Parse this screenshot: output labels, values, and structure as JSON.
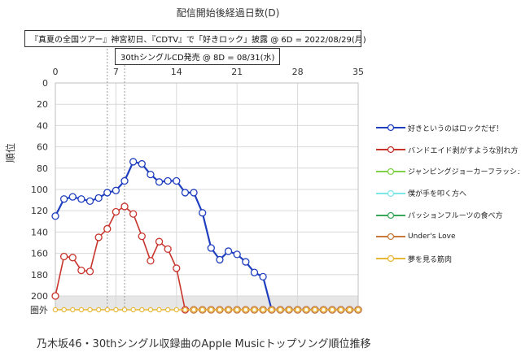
{
  "chart_data": {
    "type": "line",
    "title": "",
    "xlabel": "配信開始後経過日数(D)",
    "ylabel": "順位",
    "caption": "乃木坂46・30thシングル収録曲のApple Musicトップソング順位推移",
    "x_ticks": [
      0,
      7,
      14,
      21,
      28,
      35
    ],
    "y_ticks": [
      "0",
      "20",
      "40",
      "60",
      "80",
      "100",
      "120",
      "140",
      "160",
      "180",
      "200",
      "圏外"
    ],
    "xlim": [
      0,
      35
    ],
    "ylim": [
      0,
      213
    ],
    "y_inverted": true,
    "out_of_chart_label": "圏外",
    "out_of_chart_value": 213,
    "legend_position": "right",
    "annotations": [
      {
        "text": "『真夏の全国ツアー』神宮初日、『CDTV』で「好きロック」披露 @ 6D = 2022/08/29(月)",
        "x": 6
      },
      {
        "text": "30thシングルCD発売 @ 8D = 08/31(水)",
        "x": 8
      }
    ],
    "series": [
      {
        "name": "好きというのはロックだぜ！",
        "color": "#1f3fbf",
        "values": [
          125,
          109,
          107,
          109,
          111,
          108,
          103,
          101,
          92,
          74,
          76,
          86,
          93,
          92,
          92,
          103,
          103,
          122,
          155,
          166,
          158,
          161,
          168,
          178,
          182,
          213,
          213,
          213,
          213,
          213,
          213,
          213,
          213,
          213,
          213,
          213
        ]
      },
      {
        "name": "バンドエイド剥がすような別れ方",
        "color": "#c8342c",
        "values": [
          200,
          163,
          164,
          176,
          177,
          145,
          137,
          121,
          116,
          123,
          144,
          167,
          149,
          156,
          174,
          213,
          213,
          213,
          213,
          213,
          213,
          213,
          213,
          213,
          213,
          213,
          213,
          213,
          213,
          213,
          213,
          213,
          213,
          213,
          213,
          213
        ]
      },
      {
        "name": "ジャンピングジョーカーフラッシュ",
        "color": "#7fd24a",
        "values": []
      },
      {
        "name": "僕が手を叩く方へ",
        "color": "#7ee8e8",
        "values": []
      },
      {
        "name": "パッションフルーツの食べ方",
        "color": "#3aa85a",
        "values": []
      },
      {
        "name": "Under's Love",
        "color": "#c87a3a",
        "values": [
          null,
          null,
          null,
          null,
          null,
          null,
          null,
          null,
          null,
          null,
          null,
          null,
          null,
          null,
          null,
          null,
          213,
          213,
          213,
          213,
          213,
          213,
          213,
          213,
          213,
          213,
          213,
          213,
          213,
          213,
          213,
          213,
          213,
          213,
          213,
          213
        ]
      },
      {
        "name": "夢を見る筋肉",
        "color": "#e8b838",
        "values": [
          213,
          213,
          213,
          213,
          213,
          213,
          213,
          213,
          213,
          213,
          213,
          213,
          213,
          213,
          213,
          213,
          213,
          213,
          213,
          213,
          213,
          213,
          213,
          213,
          213,
          213,
          213,
          213,
          213,
          213,
          213,
          213,
          213,
          213,
          213,
          213
        ]
      }
    ]
  }
}
